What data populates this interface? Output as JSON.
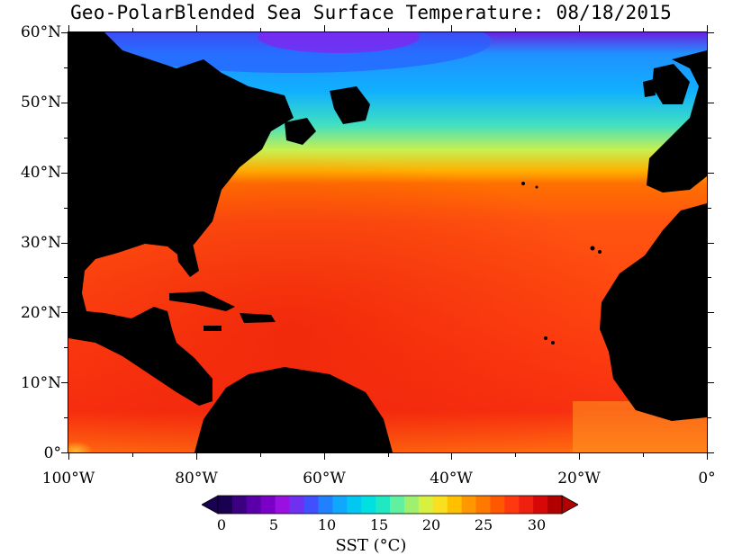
{
  "title": "Geo-PolarBlended Sea Surface Temperature: 08/18/2015",
  "map": {
    "land_color": "#000000",
    "lat_labels": [
      "60°N",
      "50°N",
      "40°N",
      "30°N",
      "20°N",
      "10°N",
      "0°"
    ],
    "lon_labels": [
      "100°W",
      "80°W",
      "60°W",
      "40°W",
      "20°W",
      "0°"
    ]
  },
  "colorbar": {
    "title": "SST (°C)",
    "tick_labels": [
      "0",
      "5",
      "10",
      "15",
      "20",
      "25",
      "30"
    ],
    "colors": [
      "#1a0050",
      "#3a0080",
      "#5a00a8",
      "#7a00c8",
      "#9a10e0",
      "#7030f0",
      "#4050ff",
      "#2080ff",
      "#10a8ff",
      "#00c8f0",
      "#00e0e0",
      "#20e8c0",
      "#60f0a0",
      "#a0f070",
      "#d8f040",
      "#f8e020",
      "#ffc000",
      "#ff9800",
      "#ff7800",
      "#ff5800",
      "#ff3810",
      "#f02010",
      "#d80808",
      "#b00000"
    ]
  }
}
